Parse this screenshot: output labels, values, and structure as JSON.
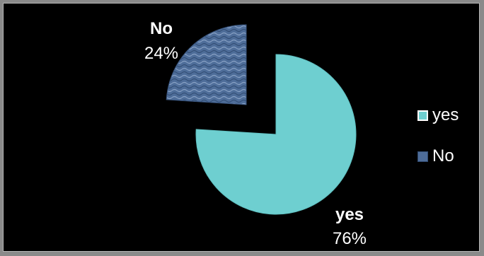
{
  "chart_data": {
    "type": "pie",
    "exploded": true,
    "slices": [
      {
        "label": "yes",
        "value": 76,
        "percent_label": "76%",
        "color": "#6ecfd0"
      },
      {
        "label": "No",
        "value": 24,
        "percent_label": "24%",
        "color": "#4e6d99"
      }
    ],
    "legend": {
      "placement": "right",
      "entries": [
        "yes",
        "No"
      ]
    },
    "background": "#000000"
  }
}
